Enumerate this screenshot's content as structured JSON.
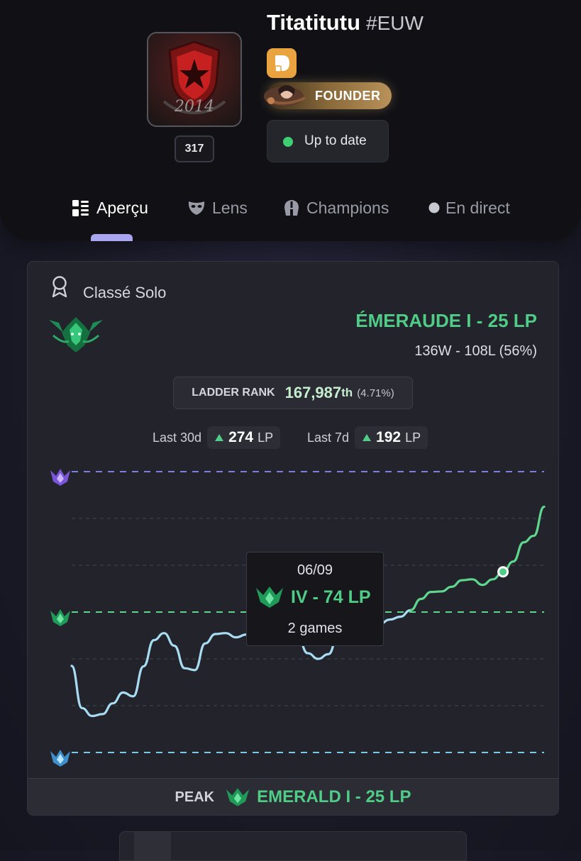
{
  "profile": {
    "name": "Titatitutu",
    "tag": "#EUW",
    "level": "317",
    "avatar_year": "2014",
    "founder_label": "FOUNDER",
    "update_status": "Up to date"
  },
  "tabs": [
    {
      "label": "Aperçu",
      "icon": "grid-icon",
      "active": true
    },
    {
      "label": "Lens",
      "icon": "mask-icon",
      "active": false
    },
    {
      "label": "Champions",
      "icon": "helmet-icon",
      "active": false
    },
    {
      "label": "En direct",
      "icon": "live-dot-icon",
      "active": false
    }
  ],
  "ranked": {
    "queue": "Classé Solo",
    "rank": "ÉMERAUDE I - 25 LP",
    "record": "136W - 108L (56%)",
    "ladder_label": "LADDER RANK",
    "ladder_value": "167,987",
    "ladder_suffix": "th",
    "ladder_percent": "(4.71%)",
    "last30_label": "Last 30d",
    "last30_value": "274",
    "last7_label": "Last 7d",
    "last7_value": "192",
    "lp_unit": "LP",
    "peak_label": "PEAK",
    "peak_rank": "EMERALD I - 25 LP"
  },
  "tooltip": {
    "date": "06/09",
    "rank": "IV - 74 LP",
    "games": "2 games"
  },
  "colors": {
    "accent_green": "#4fcc86",
    "line_blue": "#a8dcf2",
    "line_green": "#5fd68e",
    "diamond_line": "#7e7fdc",
    "platinum_line": "#7cc8ea",
    "tab_active_indicator": "#a9a6ef",
    "founder_gold": "#b9925a"
  },
  "chart_data": {
    "type": "line",
    "x": [
      0,
      1,
      2,
      3,
      4,
      5,
      6,
      7,
      8,
      9,
      10,
      11,
      12,
      13,
      14,
      15,
      16,
      17,
      18,
      19,
      20,
      21,
      22,
      23,
      24,
      25,
      26,
      27,
      28,
      29,
      30,
      31,
      32,
      33,
      34,
      35,
      36,
      37,
      38,
      39,
      40,
      41,
      42,
      43,
      44,
      45,
      46
    ],
    "y": [
      85,
      -5,
      -22,
      -18,
      5,
      28,
      20,
      84,
      140,
      155,
      128,
      80,
      76,
      133,
      153,
      155,
      146,
      152,
      170,
      192,
      190,
      174,
      146,
      112,
      100,
      110,
      154,
      177,
      148,
      149,
      175,
      184,
      190,
      204,
      228,
      243,
      244,
      254,
      268,
      270,
      258,
      270,
      286,
      308,
      349,
      363,
      425
    ],
    "highlight": {
      "date": "06/09",
      "lp_value": 274,
      "label": "IV - 74 LP"
    },
    "tier_lines": [
      {
        "tier": "platinum",
        "value": -100
      },
      {
        "tier": "emerald",
        "value": 200
      },
      {
        "tier": "diamond",
        "value": 500
      }
    ],
    "ylim": [
      -100,
      500
    ],
    "grid": true,
    "legend": "none",
    "peak": "EMERALD I - 25 LP"
  }
}
